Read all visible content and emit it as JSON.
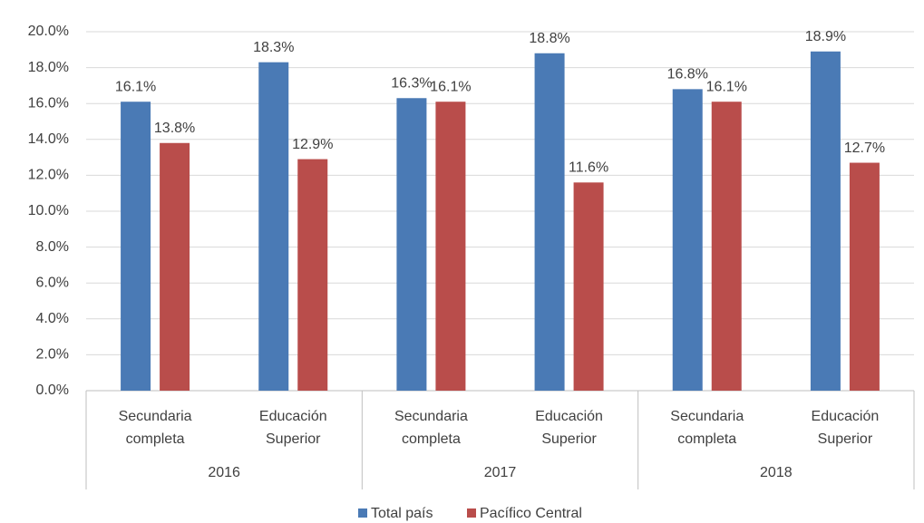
{
  "chart_data": {
    "type": "bar",
    "groups": [
      "2016",
      "2017",
      "2018"
    ],
    "categories": [
      "Secundaria completa",
      "Educación Superior",
      "Secundaria completa",
      "Educación Superior",
      "Secundaria completa",
      "Educación Superior"
    ],
    "series": [
      {
        "name": "Total país",
        "color": "#4a7ab5",
        "values": [
          16.1,
          18.3,
          16.3,
          18.8,
          16.8,
          18.9
        ],
        "value_labels": [
          "16.1%",
          "18.3%",
          "16.3%",
          "18.8%",
          "16.8%",
          "18.9%"
        ]
      },
      {
        "name": "Pacífico Central",
        "color": "#b94d4b",
        "values": [
          13.8,
          12.9,
          16.1,
          11.6,
          16.1,
          12.7
        ],
        "value_labels": [
          "13.8%",
          "12.9%",
          "16.1%",
          "11.6%",
          "16.1%",
          "12.7%"
        ]
      }
    ],
    "ylim": [
      0,
      20
    ],
    "yticks": [
      {
        "value": 0,
        "label": "0.0%"
      },
      {
        "value": 2,
        "label": "2.0%"
      },
      {
        "value": 4,
        "label": "4.0%"
      },
      {
        "value": 6,
        "label": "6.0%"
      },
      {
        "value": 8,
        "label": "8.0%"
      },
      {
        "value": 10,
        "label": "10.0%"
      },
      {
        "value": 12,
        "label": "12.0%"
      },
      {
        "value": 14,
        "label": "14.0%"
      },
      {
        "value": 16,
        "label": "16.0%"
      },
      {
        "value": 18,
        "label": "18.0%"
      },
      {
        "value": 20,
        "label": "20.0%"
      }
    ],
    "grid": true,
    "legend": "bottom"
  }
}
